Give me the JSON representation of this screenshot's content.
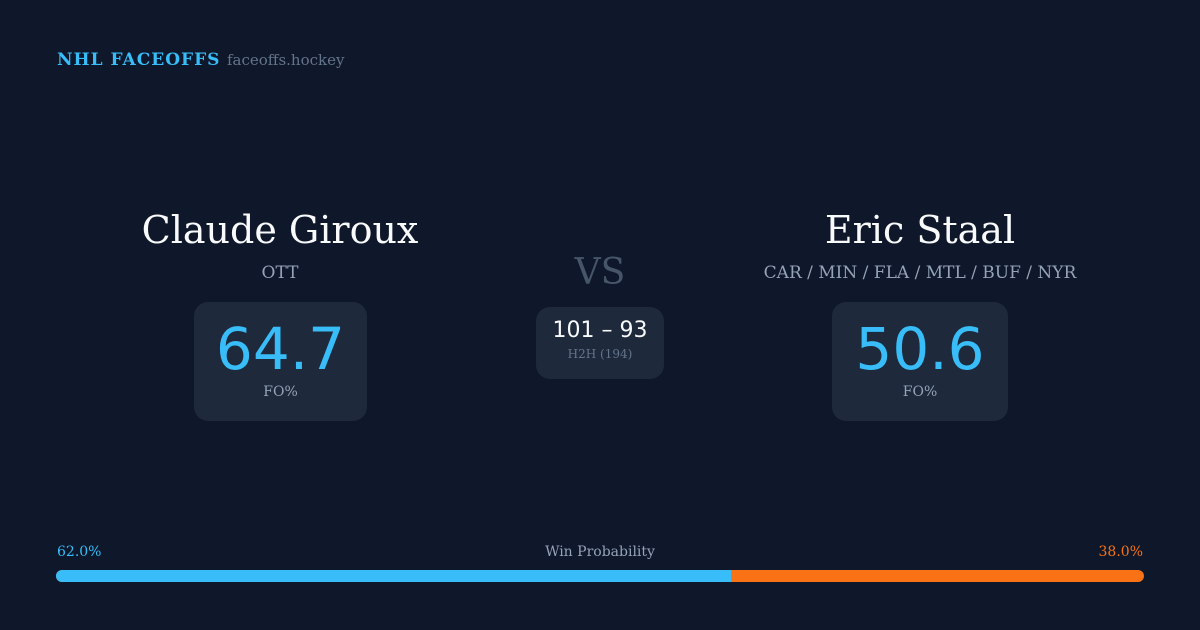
{
  "header": {
    "brand": "NHL FACEOFFS",
    "site": "faceoffs.hockey"
  },
  "left": {
    "name": "Claude Giroux",
    "team": "OTT",
    "fo_pct": "64.7",
    "fo_label": "FO%"
  },
  "right": {
    "name": "Eric Staal",
    "team": "CAR / MIN / FLA / MTL / BUF / NYR",
    "fo_pct": "50.6",
    "fo_label": "FO%"
  },
  "center": {
    "vs": "VS",
    "score": "101 – 93",
    "h2h": "H2H (194)"
  },
  "win": {
    "title": "Win Probability",
    "left_label": "62.0%",
    "right_label": "38.0%",
    "left_value": 62.0,
    "right_value": 38.0
  },
  "colors": {
    "left": "#38bdf8",
    "right": "#f97316",
    "background": "#0f172a"
  }
}
